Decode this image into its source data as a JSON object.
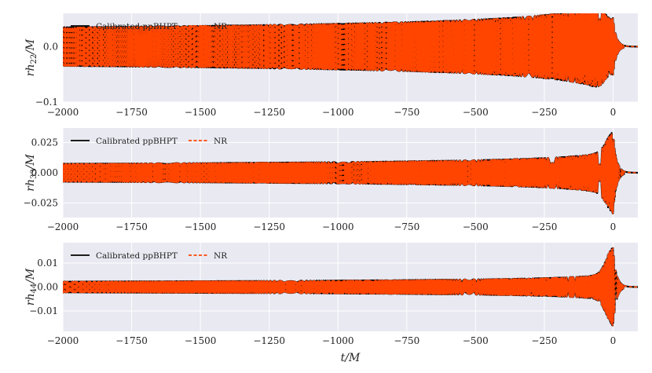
{
  "chart_data": [
    {
      "type": "line",
      "ylabel": "rh22/M",
      "ylabel_main": "rh",
      "ylabel_sub": "22",
      "ylabel_tail": "/M",
      "xlim": [
        -2000,
        90
      ],
      "ylim": [
        -0.1,
        0.06
      ],
      "xticks": [
        "−2000",
        "−1750",
        "−1500",
        "−1250",
        "−1000",
        "−750",
        "−500",
        "−250",
        "0"
      ],
      "yticks": [
        "0.0",
        "−0.1"
      ],
      "ytick_values": [
        0.0,
        -0.1
      ],
      "grid": true,
      "legend_position": "top-left",
      "mode": 2,
      "inspiral_amplitude": 0.035,
      "peak_amplitude": 0.052,
      "series": [
        {
          "name": "Calibrated ppBHPT",
          "color": "#000000",
          "style": "solid"
        },
        {
          "name": "NR",
          "color": "#ff4500",
          "style": "dashed"
        }
      ]
    },
    {
      "type": "line",
      "ylabel": "rh33/M",
      "ylabel_main": "rh",
      "ylabel_sub": "33",
      "ylabel_tail": "/M",
      "xlim": [
        -2000,
        90
      ],
      "ylim": [
        -0.037,
        0.037
      ],
      "xticks": [
        "−2000",
        "−1750",
        "−1500",
        "−1250",
        "−1000",
        "−750",
        "−500",
        "−250",
        "0"
      ],
      "yticks": [
        "0.025",
        "0.000",
        "−0.025"
      ],
      "ytick_values": [
        0.025,
        0.0,
        -0.025
      ],
      "grid": true,
      "legend_position": "top-left",
      "mode": 3,
      "inspiral_amplitude": 0.0075,
      "peak_amplitude": 0.034,
      "series": [
        {
          "name": "Calibrated ppBHPT",
          "color": "#000000",
          "style": "solid"
        },
        {
          "name": "NR",
          "color": "#ff4500",
          "style": "dashed"
        }
      ]
    },
    {
      "type": "line",
      "ylabel": "rh44/M",
      "ylabel_main": "rh",
      "ylabel_sub": "44",
      "ylabel_tail": "/M",
      "xlabel": "t/M",
      "xlim": [
        -2000,
        90
      ],
      "ylim": [
        -0.0185,
        0.0185
      ],
      "xticks": [
        "−2000",
        "−1750",
        "−1500",
        "−1250",
        "−1000",
        "−750",
        "−500",
        "−250",
        "0"
      ],
      "yticks": [
        "0.01",
        "0.00",
        "−0.01"
      ],
      "ytick_values": [
        0.01,
        0.0,
        -0.01
      ],
      "grid": true,
      "legend_position": "top-left",
      "mode": 4,
      "inspiral_amplitude": 0.0023,
      "peak_amplitude": 0.0165,
      "series": [
        {
          "name": "Calibrated ppBHPT",
          "color": "#000000",
          "style": "solid"
        },
        {
          "name": "NR",
          "color": "#ff4500",
          "style": "dashed"
        }
      ]
    }
  ],
  "colors": {
    "panel_background": "#e9e9f2",
    "grid": "#ffffff"
  }
}
